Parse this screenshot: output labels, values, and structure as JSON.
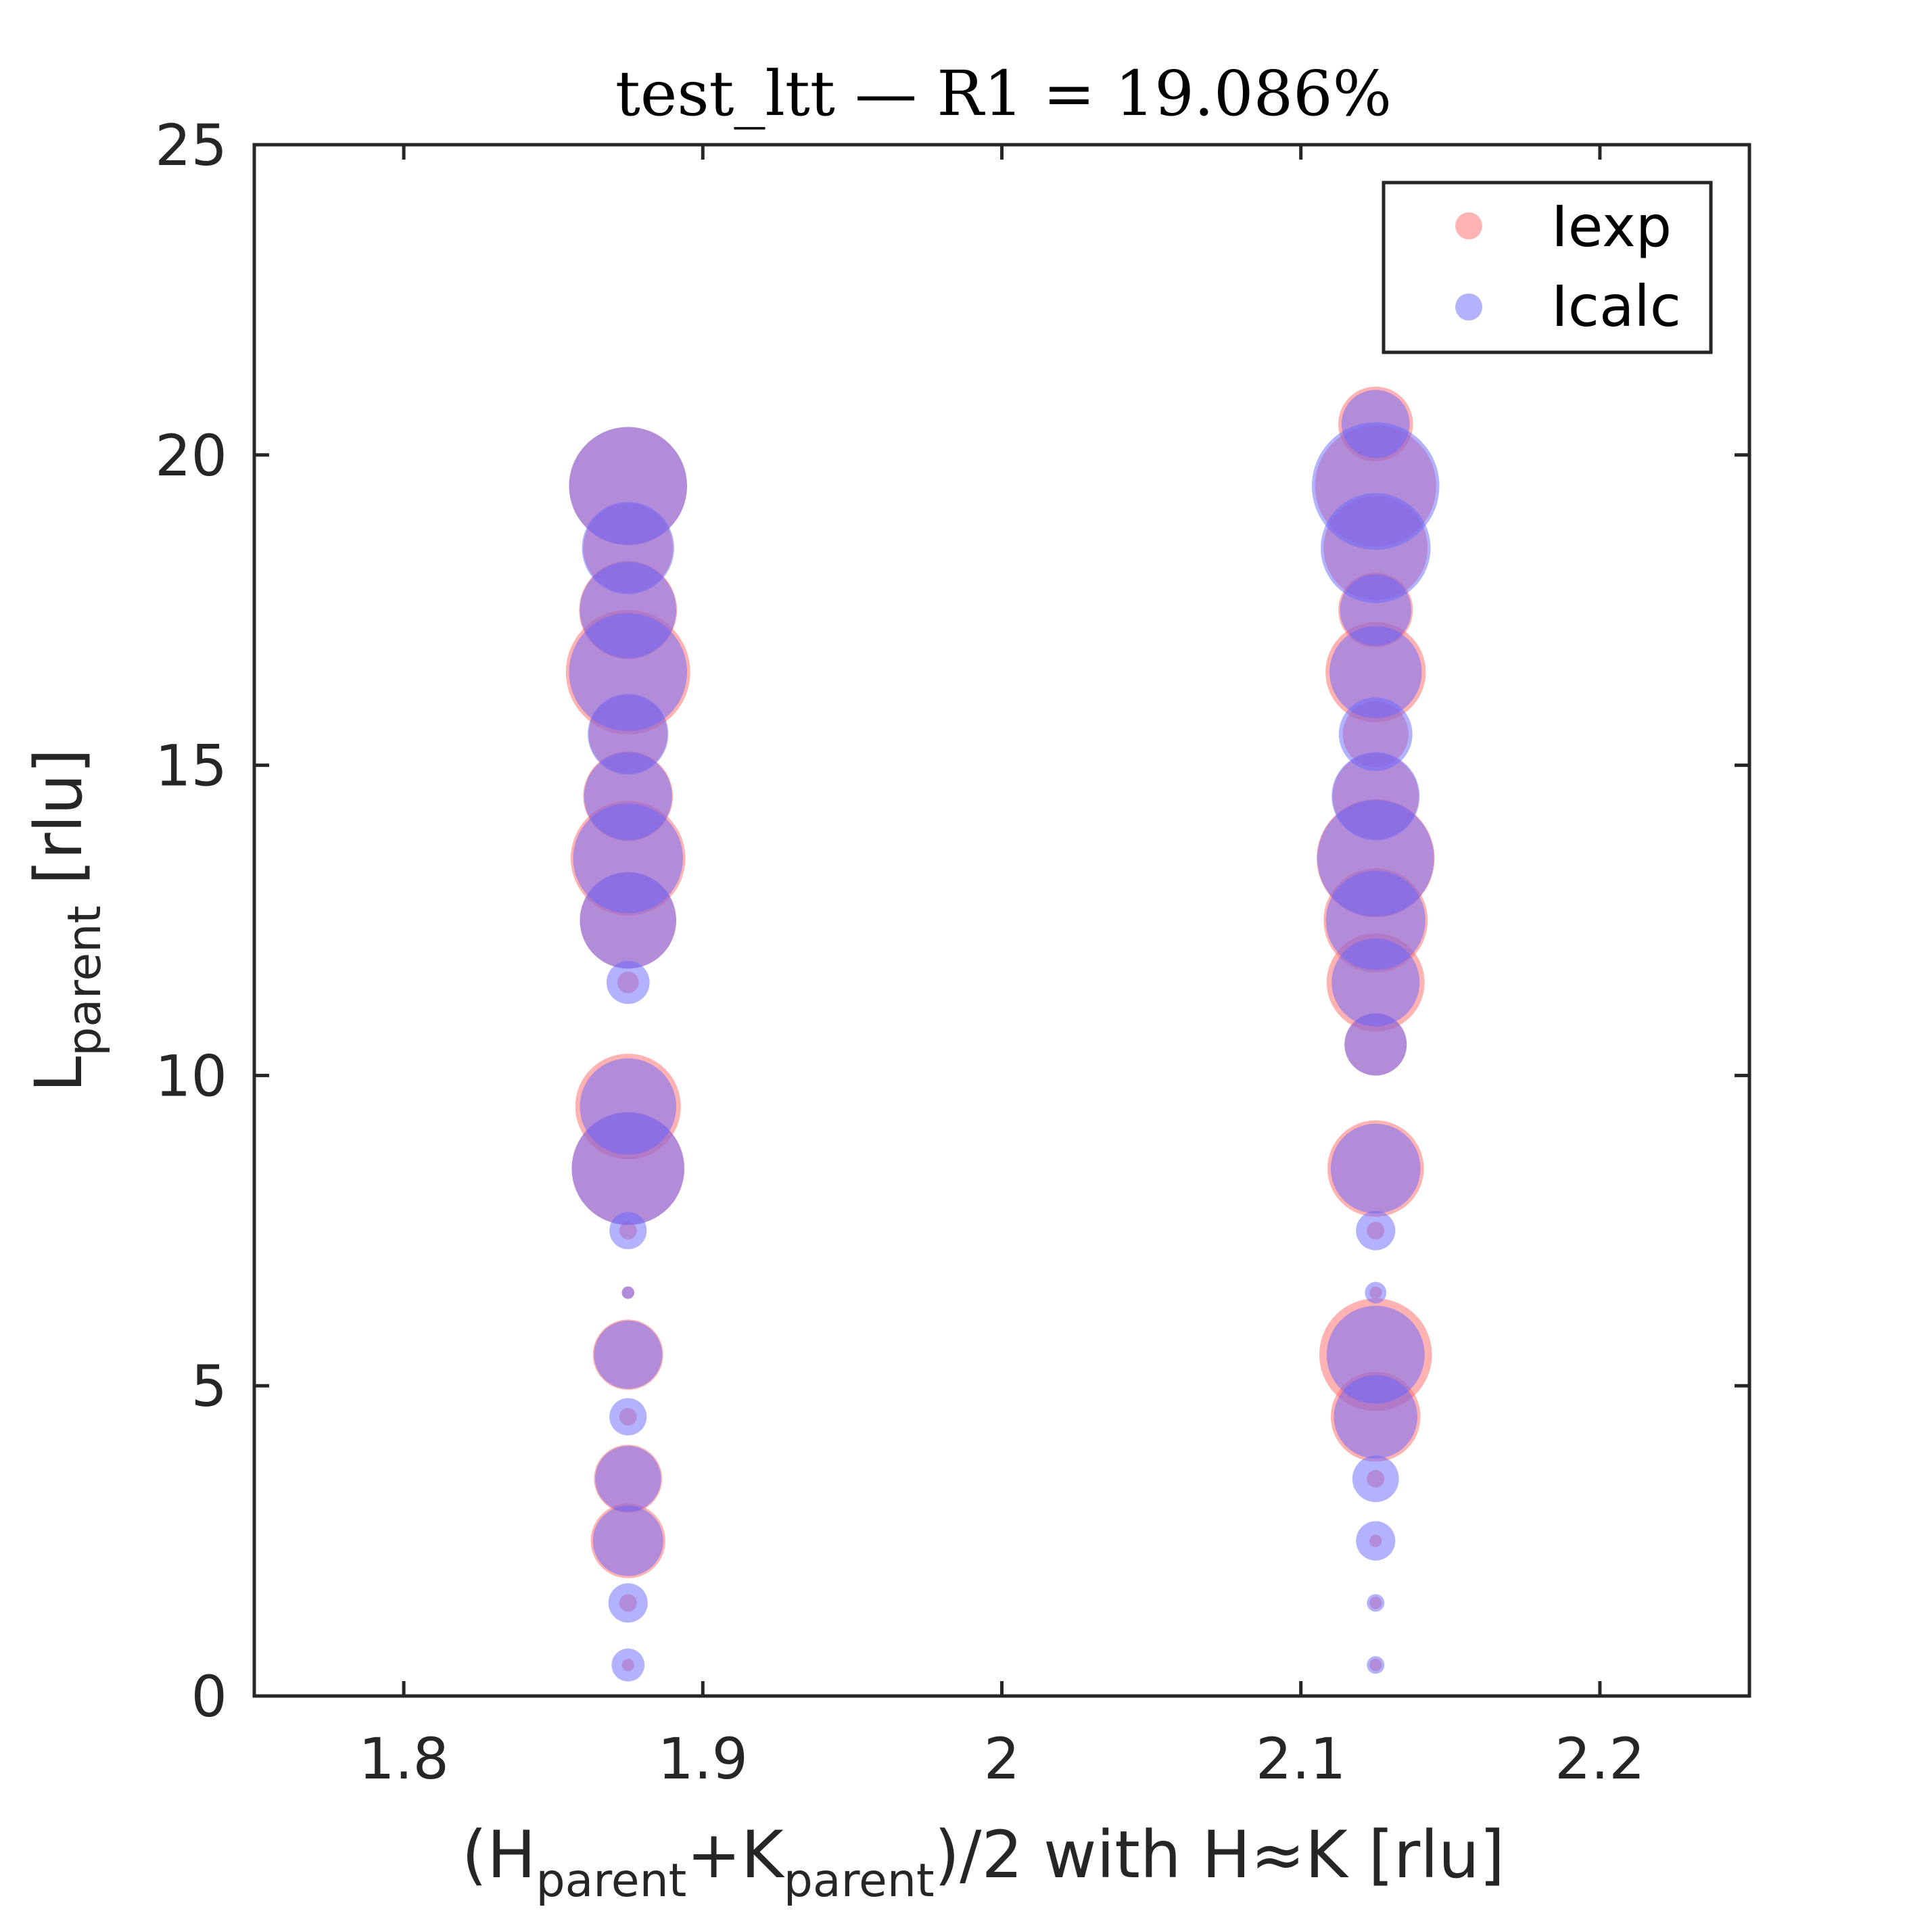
{
  "chart_data": {
    "type": "scatter",
    "title": "test_ltt — R1 = 19.086%",
    "xlabel": {
      "pre": "(H",
      "sub1": "parent",
      "mid": "+K",
      "sub2": "parent",
      "post": ")/2 with H≈K [rlu]"
    },
    "ylabel": {
      "main": "L",
      "sub": "parent",
      "post": " [rlu]"
    },
    "xlim": [
      1.75,
      2.25
    ],
    "ylim": [
      0,
      25
    ],
    "xticks": [
      1.8,
      1.9,
      2.0,
      2.1,
      2.2
    ],
    "xtick_labels": [
      "1.8",
      "1.9",
      "2",
      "2.1",
      "2.2"
    ],
    "yticks": [
      0,
      5,
      10,
      15,
      20,
      25
    ],
    "ytick_labels": [
      "0",
      "5",
      "10",
      "15",
      "20",
      "25"
    ],
    "grid": false,
    "legend_position": "top-right",
    "note": "marker area proportional to intensity (relative units)",
    "series": [
      {
        "name": "Iexp",
        "color": "#ff6666",
        "opacity": 0.5,
        "points": [
          {
            "x": 1.875,
            "y": 19.5,
            "size": 0.9
          },
          {
            "x": 1.875,
            "y": 18.5,
            "size": 0.52
          },
          {
            "x": 1.875,
            "y": 17.5,
            "size": 0.62
          },
          {
            "x": 1.875,
            "y": 16.5,
            "size": 1.0
          },
          {
            "x": 1.875,
            "y": 15.5,
            "size": 0.4
          },
          {
            "x": 1.875,
            "y": 14.5,
            "size": 0.52
          },
          {
            "x": 1.875,
            "y": 13.5,
            "size": 0.85
          },
          {
            "x": 1.875,
            "y": 12.5,
            "size": 0.6
          },
          {
            "x": 1.875,
            "y": 11.5,
            "size": 0.03
          },
          {
            "x": 1.875,
            "y": 9.5,
            "size": 0.72
          },
          {
            "x": 1.875,
            "y": 8.5,
            "size": 0.82
          },
          {
            "x": 1.875,
            "y": 7.5,
            "size": 0.02
          },
          {
            "x": 1.875,
            "y": 6.5,
            "size": 0.01
          },
          {
            "x": 1.875,
            "y": 5.5,
            "size": 0.32
          },
          {
            "x": 1.875,
            "y": 4.5,
            "size": 0.02
          },
          {
            "x": 1.875,
            "y": 3.5,
            "size": 0.3
          },
          {
            "x": 1.875,
            "y": 2.5,
            "size": 0.36
          },
          {
            "x": 1.875,
            "y": 1.5,
            "size": 0.02
          },
          {
            "x": 1.875,
            "y": 0.5,
            "size": 0.01
          },
          {
            "x": 2.125,
            "y": 20.5,
            "size": 0.36
          },
          {
            "x": 2.125,
            "y": 19.5,
            "size": 0.95
          },
          {
            "x": 2.125,
            "y": 18.5,
            "size": 0.7
          },
          {
            "x": 2.125,
            "y": 17.5,
            "size": 0.36
          },
          {
            "x": 2.125,
            "y": 16.5,
            "size": 0.65
          },
          {
            "x": 2.125,
            "y": 15.5,
            "size": 0.28
          },
          {
            "x": 2.125,
            "y": 14.5,
            "size": 0.48
          },
          {
            "x": 2.125,
            "y": 13.5,
            "size": 0.9
          },
          {
            "x": 2.125,
            "y": 12.5,
            "size": 0.7
          },
          {
            "x": 2.125,
            "y": 11.5,
            "size": 0.62
          },
          {
            "x": 2.125,
            "y": 10.5,
            "size": 0.25
          },
          {
            "x": 2.125,
            "y": 8.5,
            "size": 0.6
          },
          {
            "x": 2.125,
            "y": 7.5,
            "size": 0.02
          },
          {
            "x": 2.125,
            "y": 6.5,
            "size": 0.01
          },
          {
            "x": 2.125,
            "y": 5.5,
            "size": 0.82
          },
          {
            "x": 2.125,
            "y": 4.5,
            "size": 0.52
          },
          {
            "x": 2.125,
            "y": 3.5,
            "size": 0.02
          },
          {
            "x": 2.125,
            "y": 2.5,
            "size": 0.01
          },
          {
            "x": 2.125,
            "y": 1.5,
            "size": 0.01
          },
          {
            "x": 2.125,
            "y": 0.5,
            "size": 0.01
          }
        ]
      },
      {
        "name": "Icalc",
        "color": "#6666ff",
        "opacity": 0.5,
        "points": [
          {
            "x": 1.875,
            "y": 19.5,
            "size": 0.9
          },
          {
            "x": 1.875,
            "y": 18.5,
            "size": 0.55
          },
          {
            "x": 1.875,
            "y": 17.5,
            "size": 0.6
          },
          {
            "x": 1.875,
            "y": 16.5,
            "size": 0.9
          },
          {
            "x": 1.875,
            "y": 15.5,
            "size": 0.42
          },
          {
            "x": 1.875,
            "y": 14.5,
            "size": 0.5
          },
          {
            "x": 1.875,
            "y": 13.5,
            "size": 0.78
          },
          {
            "x": 1.875,
            "y": 12.5,
            "size": 0.6
          },
          {
            "x": 1.875,
            "y": 11.5,
            "size": 0.12
          },
          {
            "x": 1.875,
            "y": 9.5,
            "size": 0.6
          },
          {
            "x": 1.875,
            "y": 8.5,
            "size": 0.82
          },
          {
            "x": 1.875,
            "y": 7.5,
            "size": 0.09
          },
          {
            "x": 1.875,
            "y": 6.5,
            "size": 0.01
          },
          {
            "x": 1.875,
            "y": 5.5,
            "size": 0.3
          },
          {
            "x": 1.875,
            "y": 4.5,
            "size": 0.09
          },
          {
            "x": 1.875,
            "y": 3.5,
            "size": 0.28
          },
          {
            "x": 1.875,
            "y": 2.5,
            "size": 0.32
          },
          {
            "x": 1.875,
            "y": 1.5,
            "size": 0.1
          },
          {
            "x": 1.875,
            "y": 0.5,
            "size": 0.07
          },
          {
            "x": 2.125,
            "y": 20.5,
            "size": 0.3
          },
          {
            "x": 2.125,
            "y": 19.5,
            "size": 1.05
          },
          {
            "x": 2.125,
            "y": 18.5,
            "size": 0.78
          },
          {
            "x": 2.125,
            "y": 17.5,
            "size": 0.33
          },
          {
            "x": 2.125,
            "y": 16.5,
            "size": 0.55
          },
          {
            "x": 2.125,
            "y": 15.5,
            "size": 0.35
          },
          {
            "x": 2.125,
            "y": 14.5,
            "size": 0.5
          },
          {
            "x": 2.125,
            "y": 13.5,
            "size": 0.88
          },
          {
            "x": 2.125,
            "y": 12.5,
            "size": 0.64
          },
          {
            "x": 2.125,
            "y": 11.5,
            "size": 0.5
          },
          {
            "x": 2.125,
            "y": 10.5,
            "size": 0.25
          },
          {
            "x": 2.125,
            "y": 8.5,
            "size": 0.52
          },
          {
            "x": 2.125,
            "y": 7.5,
            "size": 0.1
          },
          {
            "x": 2.125,
            "y": 6.5,
            "size": 0.03
          },
          {
            "x": 2.125,
            "y": 5.5,
            "size": 0.62
          },
          {
            "x": 2.125,
            "y": 4.5,
            "size": 0.45
          },
          {
            "x": 2.125,
            "y": 3.5,
            "size": 0.14
          },
          {
            "x": 2.125,
            "y": 2.5,
            "size": 0.1
          },
          {
            "x": 2.125,
            "y": 1.5,
            "size": 0.02
          },
          {
            "x": 2.125,
            "y": 0.5,
            "size": 0.02
          }
        ]
      }
    ]
  }
}
